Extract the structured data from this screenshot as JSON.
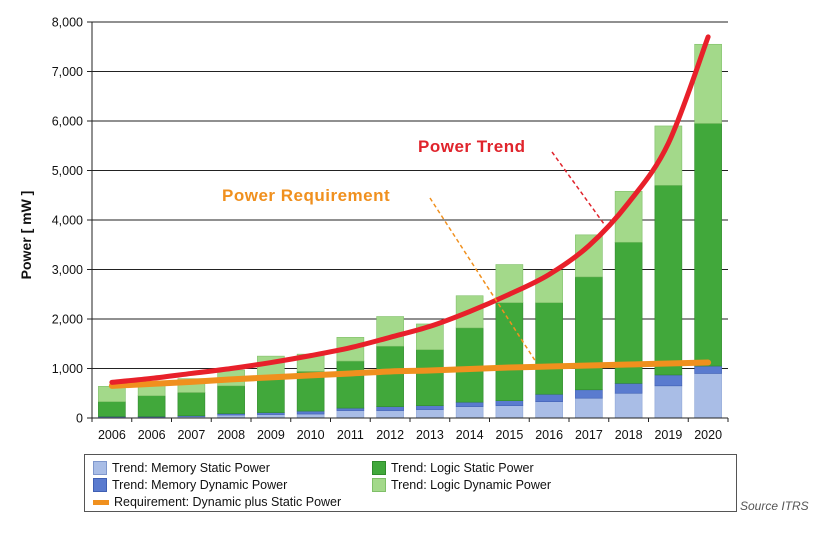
{
  "chart_data": {
    "type": "bar",
    "stacked": true,
    "categories": [
      "2006",
      "2006",
      "2007",
      "2008",
      "2009",
      "2010",
      "2011",
      "2012",
      "2013",
      "2014",
      "2015",
      "2016",
      "2017",
      "2018",
      "2019",
      "2020"
    ],
    "ylabel": "Power  [ mW ]",
    "ylim": [
      0,
      8000
    ],
    "yticks": [
      "0",
      "1,000",
      "2,000",
      "3,000",
      "4,000",
      "5,000",
      "6,000",
      "7,000",
      "8,000"
    ],
    "ytick_values": [
      0,
      1000,
      2000,
      3000,
      4000,
      5000,
      6000,
      7000,
      8000
    ],
    "grid": true,
    "series": [
      {
        "name": "Trend: Memory Static Power",
        "color": "#a9bde6",
        "values": [
          20,
          20,
          30,
          60,
          70,
          80,
          150,
          150,
          170,
          230,
          250,
          330,
          400,
          500,
          650,
          900
        ]
      },
      {
        "name": "Trend: Memory Dynamic Power",
        "color": "#5a7bcf",
        "values": [
          10,
          10,
          15,
          30,
          40,
          60,
          50,
          80,
          80,
          90,
          100,
          150,
          170,
          200,
          220,
          150
        ]
      },
      {
        "name": "Trend: Logic Static Power",
        "color": "#41a83b",
        "values": [
          300,
          420,
          470,
          560,
          700,
          800,
          950,
          1220,
          1130,
          1500,
          1980,
          1850,
          2280,
          2850,
          3830,
          4900
        ]
      },
      {
        "name": "Trend: Logic Dynamic Power",
        "color": "#a3d98a",
        "values": [
          310,
          280,
          280,
          320,
          440,
          350,
          480,
          600,
          520,
          650,
          770,
          650,
          850,
          1030,
          1200,
          1600
        ]
      }
    ],
    "lines": [
      {
        "name": "Requirement: Dynamic plus Static Power",
        "color": "#f0901e",
        "values": [
          650,
          690,
          730,
          780,
          820,
          860,
          900,
          940,
          960,
          990,
          1020,
          1040,
          1060,
          1080,
          1100,
          1120
        ]
      },
      {
        "name": "Power Trend",
        "color": "#e8202a",
        "values": [
          720,
          800,
          900,
          1000,
          1120,
          1260,
          1420,
          1630,
          1850,
          2150,
          2500,
          2900,
          3480,
          4350,
          5550,
          7700
        ]
      }
    ],
    "annotations": [
      {
        "text": "Power  Trend",
        "color": "#e0242c"
      },
      {
        "text": "Power  Requirement",
        "color": "#f0901e"
      }
    ],
    "legend_position": "bottom"
  },
  "legend": [
    {
      "label": "Trend: Memory Static Power",
      "color": "#a9bde6",
      "kind": "box"
    },
    {
      "label": "Trend: Memory Dynamic Power",
      "color": "#5a7bcf",
      "kind": "box"
    },
    {
      "label": "Requirement: Dynamic plus Static Power",
      "color": "#f0901e",
      "kind": "line"
    },
    {
      "label": "Trend: Logic Static Power",
      "color": "#41a83b",
      "kind": "box"
    },
    {
      "label": "Trend: Logic Dynamic Power",
      "color": "#a3d98a",
      "kind": "box"
    }
  ],
  "source": "Source ITRS"
}
